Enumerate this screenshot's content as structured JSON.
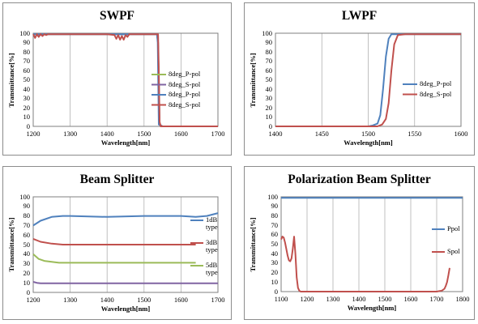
{
  "chart_data": [
    {
      "id": "swpf",
      "type": "line",
      "title": "SWPF",
      "xlabel": "Wavelength[nm]",
      "ylabel": "Transmittance[%]",
      "xlim": [
        1200,
        1700
      ],
      "ylim": [
        0,
        100
      ],
      "xticks": [
        1200,
        1300,
        1400,
        1500,
        1600,
        1700
      ],
      "yticks": [
        0,
        10,
        20,
        30,
        40,
        50,
        60,
        70,
        80,
        90,
        100
      ],
      "grid": "vertical",
      "legend": "right",
      "series": [
        {
          "name": "8deg_P-pol",
          "color": "#9bbb59",
          "x": [
            1200,
            1300,
            1400,
            1500,
            1530,
            1535,
            1538,
            1542,
            1550,
            1600,
            1700
          ],
          "y": [
            99,
            99,
            99,
            99,
            99,
            99,
            90,
            2,
            0,
            0,
            0
          ]
        },
        {
          "name": "8deg_S-pol",
          "color": "#8064a2",
          "x": [
            1200,
            1300,
            1400,
            1500,
            1530,
            1535,
            1538,
            1542,
            1550,
            1600,
            1700
          ],
          "y": [
            99,
            99,
            99,
            99,
            99,
            99,
            90,
            2,
            0,
            0,
            0
          ]
        },
        {
          "name": "8deg_P-pol",
          "color": "#4f81bd",
          "x": [
            1200,
            1300,
            1400,
            1500,
            1530,
            1535,
            1537,
            1540,
            1548,
            1600,
            1700
          ],
          "y": [
            99,
            99,
            99,
            99,
            99,
            99,
            90,
            2,
            0,
            0,
            0
          ]
        },
        {
          "name": "8deg_S-pol",
          "color": "#c0504d",
          "x": [
            1200,
            1205,
            1210,
            1215,
            1220,
            1225,
            1230,
            1235,
            1240,
            1300,
            1400,
            1420,
            1425,
            1430,
            1435,
            1440,
            1445,
            1450,
            1455,
            1460,
            1500,
            1530,
            1538,
            1540,
            1542,
            1545,
            1550,
            1600,
            1700
          ],
          "y": [
            99,
            95,
            99,
            96,
            99,
            97,
            99,
            98,
            99,
            99,
            99,
            98,
            94,
            98,
            93,
            97,
            93,
            98,
            96,
            99,
            99,
            99,
            99,
            60,
            5,
            0,
            0,
            0,
            0
          ]
        }
      ]
    },
    {
      "id": "lwpf",
      "type": "line",
      "title": "LWPF",
      "xlabel": "Wavelength[nm]",
      "ylabel": "Transmittance[%]",
      "xlim": [
        1400,
        1600
      ],
      "ylim": [
        0,
        100
      ],
      "xticks": [
        1400,
        1450,
        1500,
        1550,
        1600
      ],
      "yticks": [
        0,
        10,
        20,
        30,
        40,
        50,
        60,
        70,
        80,
        90,
        100
      ],
      "grid": "vertical",
      "legend": "right",
      "series": [
        {
          "name": "8deg_P-pol",
          "color": "#4f81bd",
          "x": [
            1400,
            1450,
            1500,
            1505,
            1510,
            1513,
            1516,
            1519,
            1522,
            1525,
            1530,
            1550,
            1600
          ],
          "y": [
            0,
            0,
            0,
            1,
            3,
            12,
            40,
            75,
            94,
            99,
            99,
            99,
            99
          ]
        },
        {
          "name": "8deg_S-pol",
          "color": "#c0504d",
          "x": [
            1400,
            1450,
            1500,
            1510,
            1515,
            1519,
            1522,
            1525,
            1528,
            1532,
            1540,
            1560,
            1600
          ],
          "y": [
            0,
            0,
            0,
            0,
            2,
            8,
            25,
            60,
            88,
            98,
            99,
            99,
            99
          ]
        }
      ]
    },
    {
      "id": "beam-splitter",
      "type": "line",
      "title": "Beam Splitter",
      "xlabel": "Wavelength[nm]",
      "ylabel": "Transmittance[%]",
      "xlim": [
        1200,
        1700
      ],
      "ylim": [
        0,
        100
      ],
      "xticks": [
        1200,
        1300,
        1400,
        1500,
        1600,
        1700
      ],
      "yticks": [
        0,
        10,
        20,
        30,
        40,
        50,
        60,
        70,
        80,
        90,
        100
      ],
      "grid": "vertical",
      "legend": "right",
      "series": [
        {
          "name": "1dB\ntype",
          "color": "#4f81bd",
          "x": [
            1200,
            1220,
            1250,
            1280,
            1300,
            1400,
            1500,
            1600,
            1640,
            1670,
            1700
          ],
          "y": [
            70,
            75,
            79,
            80,
            80,
            79,
            80,
            80,
            79,
            80,
            83
          ]
        },
        {
          "name": "3dB\ntype",
          "color": "#c0504d",
          "x": [
            1200,
            1220,
            1250,
            1280,
            1300,
            1400,
            1500,
            1640
          ],
          "y": [
            56,
            53,
            51,
            50,
            50,
            50,
            50,
            50
          ]
        },
        {
          "name": "5dB\ntype",
          "color": "#9bbb59",
          "x": [
            1200,
            1215,
            1230,
            1250,
            1270,
            1300,
            1400,
            1500,
            1640
          ],
          "y": [
            40,
            35,
            33,
            32,
            31,
            31,
            31,
            31,
            31
          ]
        },
        {
          "name": "",
          "color": "#8064a2",
          "x": [
            1200,
            1210,
            1220,
            1250,
            1300,
            1400,
            1500,
            1600,
            1700
          ],
          "y": [
            11,
            10,
            9.5,
            9.5,
            9.5,
            9.5,
            9.5,
            9.5,
            9.5
          ]
        }
      ]
    },
    {
      "id": "polarization-beam-splitter",
      "type": "line",
      "title": "Polarization Beam Splitter",
      "xlabel": "Wavelength[nm]",
      "ylabel": "Transmittance[%]",
      "xlim": [
        1100,
        1800
      ],
      "ylim": [
        0,
        100
      ],
      "xticks": [
        1100,
        1200,
        1300,
        1400,
        1500,
        1600,
        1700,
        1800
      ],
      "yticks": [
        0,
        10,
        20,
        30,
        40,
        50,
        60,
        70,
        80,
        90,
        100
      ],
      "grid": "vertical",
      "legend": "right",
      "series": [
        {
          "name": "Ppol",
          "color": "#4f81bd",
          "x": [
            1100,
            1200,
            1300,
            1400,
            1500,
            1600,
            1700,
            1800
          ],
          "y": [
            99,
            99,
            99,
            99,
            99,
            99,
            99,
            99
          ]
        },
        {
          "name": "Spol",
          "color": "#c0504d",
          "x": [
            1100,
            1105,
            1110,
            1115,
            1120,
            1125,
            1130,
            1135,
            1140,
            1145,
            1150,
            1155,
            1160,
            1165,
            1170,
            1175,
            1180,
            1200,
            1300,
            1400,
            1500,
            1600,
            1700,
            1710,
            1720,
            1730,
            1735,
            1740,
            1745,
            1750
          ],
          "y": [
            55,
            58,
            57,
            52,
            45,
            38,
            33,
            32,
            35,
            45,
            58,
            40,
            15,
            4,
            1,
            0,
            0,
            0,
            0,
            0,
            0,
            0,
            0,
            0.5,
            1,
            3,
            6,
            10,
            17,
            25
          ]
        }
      ]
    }
  ]
}
